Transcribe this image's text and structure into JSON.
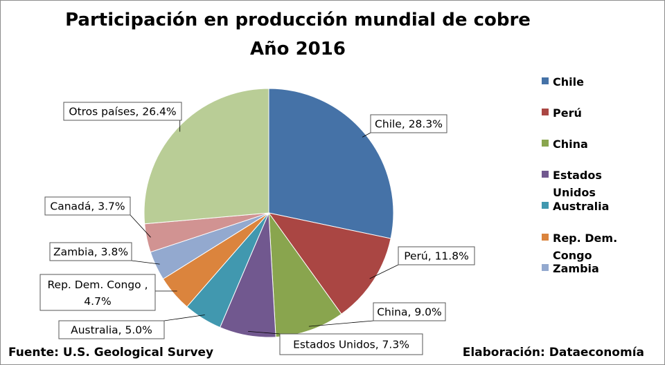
{
  "chart_data": {
    "type": "pie",
    "title": "Participación en producción mundial de cobre",
    "subtitle": "Año 2016",
    "slices": [
      {
        "label": "Chile",
        "value": 28.3,
        "data_label": "Chile, 28.3%",
        "color": "#4572a7"
      },
      {
        "label": "Perú",
        "value": 11.8,
        "data_label": "Perú, 11.8%",
        "color": "#aa4643"
      },
      {
        "label": "China",
        "value": 9.0,
        "data_label": "China, 9.0%",
        "color": "#89a54e"
      },
      {
        "label": "Estados Unidos",
        "value": 7.3,
        "data_label": "Estados Unidos, 7.3%",
        "color": "#71588f"
      },
      {
        "label": "Australia",
        "value": 5.0,
        "data_label": "Australia, 5.0%",
        "color": "#4198af"
      },
      {
        "label": "Rep. Dem. Congo",
        "value": 4.7,
        "data_label": "Rep. Dem. Congo , 4.7%",
        "color": "#db843d"
      },
      {
        "label": "Zambia",
        "value": 3.8,
        "data_label": "Zambia, 3.8%",
        "color": "#93a9cf"
      },
      {
        "label": "Canadá",
        "value": 3.7,
        "data_label": "Canadá, 3.7%",
        "color": "#d19392"
      },
      {
        "label": "Otros países",
        "value": 26.4,
        "data_label": "Otros países, 26.4%",
        "color": "#b9cd96"
      }
    ],
    "legend": {
      "position": "right",
      "items": [
        "Chile",
        "Perú",
        "China",
        "Estados Unidos",
        "Australia",
        "Rep. Dem. Congo",
        "Zambia"
      ]
    }
  },
  "footer": {
    "source": "Fuente: U.S. Geological Survey",
    "credit": "Elaboración: Dataeconomía"
  }
}
